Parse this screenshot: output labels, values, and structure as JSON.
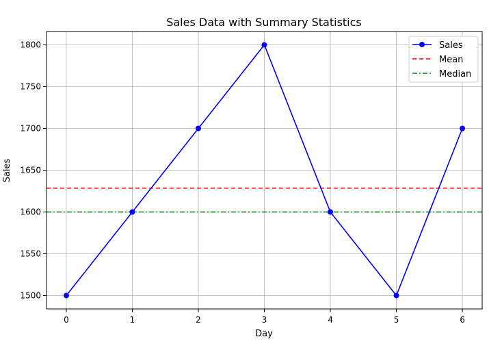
{
  "chart_data": {
    "type": "line",
    "title": "Sales Data with Summary Statistics",
    "xlabel": "Day",
    "ylabel": "Sales",
    "x": [
      0,
      1,
      2,
      3,
      4,
      5,
      6
    ],
    "xlim": [
      -0.3,
      6.3
    ],
    "ylim": [
      1484,
      1816
    ],
    "x_ticks": [
      0,
      1,
      2,
      3,
      4,
      5,
      6
    ],
    "y_ticks": [
      1500,
      1550,
      1600,
      1650,
      1700,
      1750,
      1800
    ],
    "grid": true,
    "legend_position": "top-right",
    "series": [
      {
        "name": "Sales",
        "style": "solid-with-markers",
        "color": "#0000ff",
        "values": [
          1500,
          1600,
          1700,
          1800,
          1600,
          1500,
          1700
        ]
      }
    ],
    "reference_lines": [
      {
        "name": "Mean",
        "style": "dashed",
        "color": "#ff0000",
        "value": 1628.57
      },
      {
        "name": "Median",
        "style": "dash-dot",
        "color": "#008000",
        "value": 1600
      }
    ]
  }
}
